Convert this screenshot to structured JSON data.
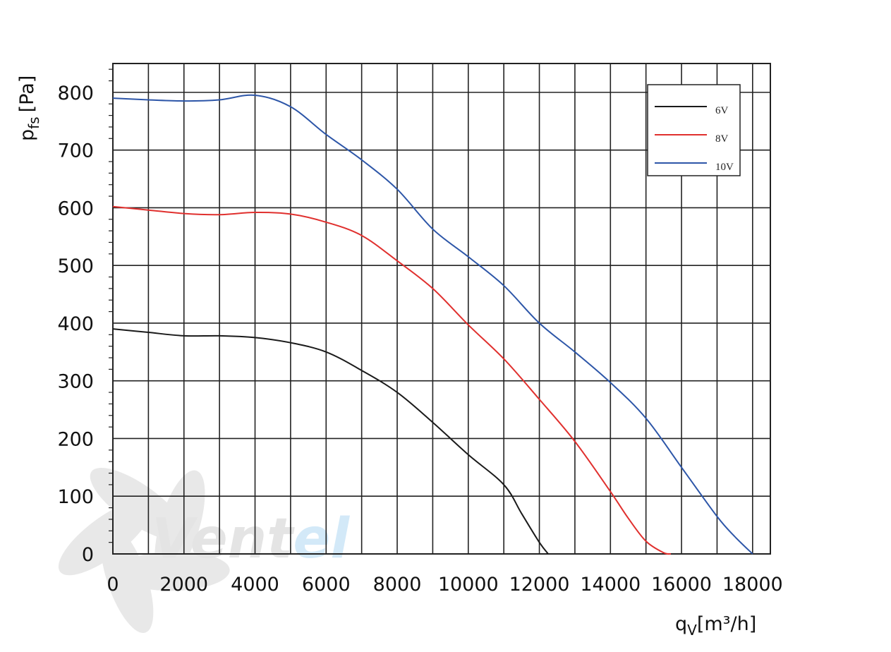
{
  "chart_data": {
    "type": "line",
    "title": "",
    "xlabel": "qV[m³/h]",
    "ylabel": "pfs [Pa]",
    "xlim": [
      0,
      18500
    ],
    "ylim": [
      0,
      850
    ],
    "x_ticks": [
      0,
      2000,
      4000,
      6000,
      8000,
      10000,
      12000,
      14000,
      16000,
      18000
    ],
    "y_ticks": [
      0,
      100,
      200,
      300,
      400,
      500,
      600,
      700,
      800
    ],
    "x_grid_step": 1000,
    "y_grid_step": 100,
    "grid": true,
    "legend_position": "top-right",
    "series": [
      {
        "name": "6V",
        "color": "#1a1a1a",
        "points": [
          [
            0,
            390
          ],
          [
            1000,
            384
          ],
          [
            2000,
            378
          ],
          [
            3000,
            378
          ],
          [
            4000,
            375
          ],
          [
            5000,
            366
          ],
          [
            6000,
            350
          ],
          [
            7000,
            318
          ],
          [
            8000,
            280
          ],
          [
            9000,
            228
          ],
          [
            10000,
            172
          ],
          [
            11000,
            120
          ],
          [
            11500,
            70
          ],
          [
            12000,
            20
          ],
          [
            12250,
            0
          ]
        ]
      },
      {
        "name": "8V",
        "color": "#e0302e",
        "points": [
          [
            0,
            602
          ],
          [
            1000,
            596
          ],
          [
            2000,
            590
          ],
          [
            3000,
            588
          ],
          [
            4000,
            592
          ],
          [
            5000,
            589
          ],
          [
            6000,
            575
          ],
          [
            7000,
            552
          ],
          [
            8000,
            508
          ],
          [
            9000,
            460
          ],
          [
            10000,
            397
          ],
          [
            11000,
            338
          ],
          [
            12000,
            268
          ],
          [
            13000,
            195
          ],
          [
            14000,
            108
          ],
          [
            14500,
            62
          ],
          [
            15000,
            22
          ],
          [
            15500,
            2
          ],
          [
            15700,
            0
          ]
        ]
      },
      {
        "name": "10V",
        "color": "#2d56a8",
        "points": [
          [
            0,
            790
          ],
          [
            1000,
            787
          ],
          [
            2000,
            785
          ],
          [
            3000,
            787
          ],
          [
            4000,
            795
          ],
          [
            5000,
            775
          ],
          [
            6000,
            727
          ],
          [
            7000,
            683
          ],
          [
            8000,
            632
          ],
          [
            9000,
            563
          ],
          [
            10000,
            515
          ],
          [
            11000,
            465
          ],
          [
            12000,
            400
          ],
          [
            13000,
            350
          ],
          [
            14000,
            297
          ],
          [
            15000,
            235
          ],
          [
            16000,
            150
          ],
          [
            17000,
            65
          ],
          [
            17500,
            30
          ],
          [
            18000,
            0
          ]
        ]
      }
    ]
  },
  "labels": {
    "ylabel_main": "p",
    "ylabel_sub": "fs",
    "ylabel_unit": "[Pa]",
    "xlabel_main": "q",
    "xlabel_sub": "V",
    "xlabel_unit": "[m³/h]"
  },
  "watermark": {
    "text_a": "Vent",
    "text_b": "el"
  }
}
